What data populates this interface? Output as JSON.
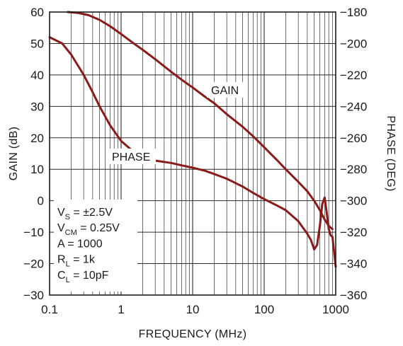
{
  "chart_data": {
    "type": "line",
    "x_scale": "log",
    "xlabel": "FREQUENCY (MHz)",
    "ylabel_left": "GAIN (dB)",
    "ylabel_right": "PHASE (DEG)",
    "xlim": [
      0.1,
      1000
    ],
    "ylim_left": [
      -30,
      60
    ],
    "ylim_right": [
      -360,
      -180
    ],
    "x_ticks": [
      "0.1",
      "1",
      "10",
      "100",
      "1000"
    ],
    "y_ticks_left": [
      "60",
      "50",
      "40",
      "30",
      "20",
      "10",
      "0",
      "−10",
      "−20",
      "−30"
    ],
    "y_ticks_right": [
      "−180",
      "−200",
      "−220",
      "−240",
      "−260",
      "−280",
      "−300",
      "−320",
      "−340",
      "−360"
    ],
    "grid": true,
    "series": [
      {
        "name": "GAIN",
        "axis": "left",
        "color": "#8b1a1a",
        "x": [
          0.18,
          0.25,
          0.35,
          0.5,
          0.7,
          1,
          1.5,
          2,
          3,
          5,
          7,
          10,
          15,
          20,
          30,
          50,
          70,
          100,
          150,
          200,
          300,
          400,
          500,
          600,
          700,
          800,
          900
        ],
        "y": [
          60,
          59.7,
          59,
          57.5,
          55.5,
          53,
          50,
          48,
          45,
          41,
          38.5,
          36,
          33,
          31,
          27.5,
          23.5,
          20.5,
          17,
          13,
          10,
          6,
          3,
          0,
          -3,
          -6,
          -8,
          -9
        ]
      },
      {
        "name": "PHASE",
        "axis": "right",
        "color": "#8b1a1a",
        "x": [
          0.1,
          0.15,
          0.2,
          0.3,
          0.4,
          0.5,
          0.7,
          1,
          1.5,
          2,
          3,
          5,
          7,
          10,
          15,
          20,
          30,
          50,
          70,
          100,
          150,
          200,
          300,
          400,
          450,
          500,
          550,
          600,
          650,
          700,
          750,
          800,
          850,
          900,
          950,
          1000
        ],
        "y": [
          -196,
          -200,
          -207,
          -220,
          -231,
          -240,
          -252,
          -262,
          -269,
          -272,
          -274.5,
          -276,
          -277.5,
          -279,
          -281,
          -283,
          -286,
          -291,
          -295,
          -299,
          -303,
          -306,
          -313,
          -321,
          -325,
          -331,
          -328,
          -316,
          -302,
          -298,
          -308,
          -318,
          -322,
          -323,
          -333,
          -342
        ]
      }
    ],
    "annotation": {
      "lines": [
        {
          "main": "V",
          "sub": "S",
          "rest": " = ±2.5V"
        },
        {
          "main": "V",
          "sub": "CM",
          "rest": " = 0.25V"
        },
        {
          "main": "A = 1000",
          "sub": "",
          "rest": ""
        },
        {
          "main": "R",
          "sub": "L",
          "rest": " = 1k"
        },
        {
          "main": "C",
          "sub": "L",
          "rest": " = 10pF"
        }
      ]
    }
  }
}
